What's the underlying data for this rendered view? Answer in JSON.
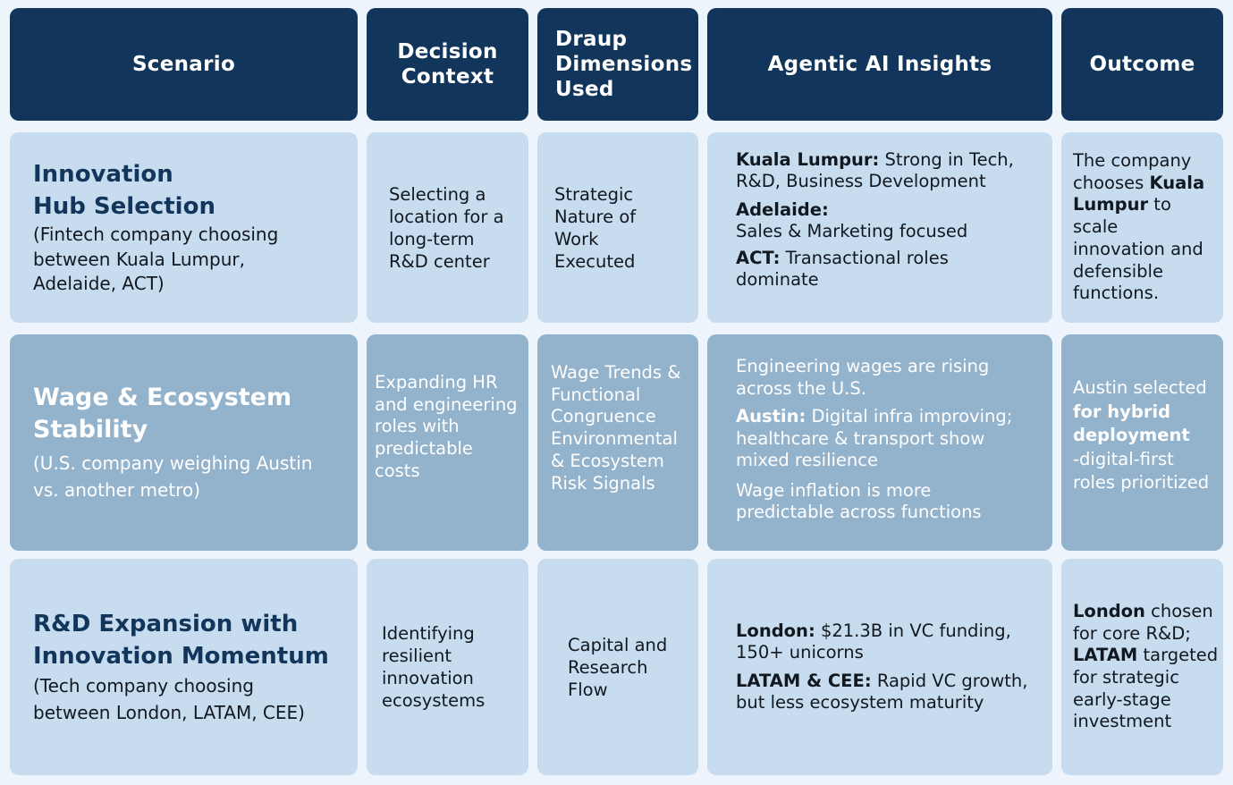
{
  "headers": {
    "scenario": "Scenario",
    "decision_context": [
      "Decision",
      "Context"
    ],
    "draup_dimensions": [
      "Draup",
      "Dimensions",
      "Used"
    ],
    "agentic_ai": "Agentic AI Insights",
    "outcome": "Outcome"
  },
  "rows": [
    {
      "scenario_title": [
        "Innovation",
        "Hub Selection"
      ],
      "scenario_sub": [
        "(Fintech company choosing",
        "between Kuala Lumpur,",
        "Adelaide, ACT)"
      ],
      "decision_context": [
        "Selecting a",
        "location for a",
        "long-term",
        "R&D center"
      ],
      "dimensions": [
        "Strategic",
        "Nature of",
        "Work",
        "Executed"
      ],
      "insights": [
        {
          "bold": "Kuala Lumpur:",
          "text": " Strong in Tech,",
          "cont": "R&D, Business Development"
        },
        {
          "bold": "Adelaide:",
          "text": "",
          "cont": "Sales & Marketing focused"
        },
        {
          "bold": "ACT:",
          "text": " Transactional roles",
          "cont": "dominate"
        }
      ],
      "outcome": {
        "l1": "The company",
        "l2_pre": "chooses ",
        "l2_bold": "Kuala",
        "l3_bold": "Lumpur",
        "l3_post": " to",
        "rest": [
          "scale",
          "innovation and",
          "defensible",
          "functions."
        ]
      }
    },
    {
      "scenario_title": [
        "Wage & Ecosystem",
        "Stability"
      ],
      "scenario_sub": [
        "(U.S. company weighing Austin",
        "vs. another metro)"
      ],
      "decision_context": [
        "Expanding HR",
        "and engineering",
        "roles with",
        "predictable",
        "costs"
      ],
      "dimensions": [
        "Wage Trends &",
        "Functional",
        "Congruence",
        "Environmental",
        "& Ecosystem",
        "Risk Signals"
      ],
      "insights": {
        "p1": [
          "Engineering wages are rising",
          "across the U.S."
        ],
        "p2_bold": "Austin:",
        "p2_text": " Digital infra improving;",
        "p2_cont": [
          "healthcare & transport show",
          "mixed resilience"
        ],
        "p3": [
          "Wage inflation is more",
          "predictable across functions"
        ]
      },
      "outcome": {
        "l1": "Austin selected",
        "l2": "for hybrid",
        "l3": "deployment",
        "l4": "-digital-first",
        "l5": "roles prioritized"
      }
    },
    {
      "scenario_title": [
        "R&D Expansion with",
        "Innovation Momentum"
      ],
      "scenario_sub": [
        "(Tech company choosing",
        "between London, LATAM, CEE)"
      ],
      "decision_context": [
        "Identifying",
        "resilient",
        "innovation",
        "ecosystems"
      ],
      "dimensions": [
        "Capital and",
        "Research",
        "Flow"
      ],
      "insights": [
        {
          "bold": "London:",
          "text": " $21.3B in VC funding,",
          "cont": "150+ unicorns"
        },
        {
          "bold": "LATAM & CEE:",
          "text": " Rapid VC growth,",
          "cont": "but less ecosystem maturity"
        }
      ],
      "outcome": {
        "l1_bold": "London",
        "l1_post": " chosen",
        "l2": "for core R&D;",
        "l3_bold": "LATAM",
        "l3_post": " targeted",
        "rest": [
          "for strategic",
          "early-stage",
          "investment"
        ]
      }
    }
  ]
}
